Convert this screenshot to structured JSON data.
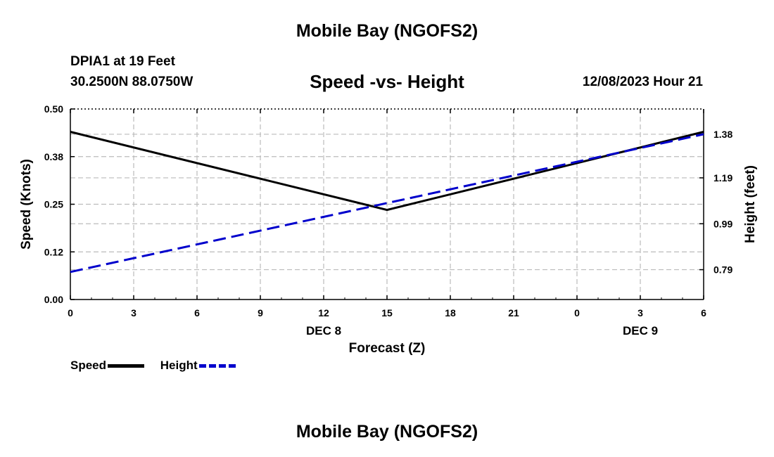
{
  "header": {
    "title": "Mobile Bay (NGOFS2)",
    "station": "DPIA1 at 19 Feet",
    "coordinates": "30.2500N  88.0750W",
    "chart_title": "Speed -vs- Height",
    "run_time": "12/08/2023 Hour 21"
  },
  "footer": {
    "title": "Mobile Bay (NGOFS2)"
  },
  "legend": {
    "speed_label": "Speed",
    "height_label": "Height"
  },
  "colors": {
    "speed": "#000000",
    "height": "#0000cc",
    "grid": "#bbbbbb"
  },
  "chart_data": {
    "type": "line",
    "title": "Speed -vs- Height",
    "xlabel": "Forecast (Z)",
    "ylabel": "Speed (Knots)",
    "y2label": "Height (feet)",
    "x_ticks": [
      "0",
      "3",
      "6",
      "9",
      "12",
      "15",
      "18",
      "21",
      "0",
      "3",
      "6"
    ],
    "x_tick_hours": [
      0,
      3,
      6,
      9,
      12,
      15,
      18,
      21,
      24,
      27,
      30
    ],
    "x_range": [
      0,
      30
    ],
    "date_labels": [
      {
        "label": "DEC 8",
        "hour": 12
      },
      {
        "label": "DEC 9",
        "hour": 27
      }
    ],
    "ylim": [
      0,
      0.5
    ],
    "y_ticks": [
      "0.00",
      "0.12",
      "0.25",
      "0.38",
      "0.50"
    ],
    "y_tick_values": [
      0,
      0.125,
      0.25,
      0.375,
      0.5
    ],
    "y2lim": [
      0.66,
      1.49
    ],
    "y2_ticks": [
      "0.79",
      "0.99",
      "1.19",
      "1.38"
    ],
    "y2_tick_values": [
      0.79,
      0.99,
      1.19,
      1.38
    ],
    "grid": true,
    "legend_position": "bottom-left",
    "series": [
      {
        "name": "Speed",
        "axis": "left",
        "style": "solid",
        "x": [
          0,
          15,
          30
        ],
        "values": [
          0.44,
          0.235,
          0.44
        ]
      },
      {
        "name": "Height",
        "axis": "right",
        "style": "dashed",
        "x": [
          0,
          30
        ],
        "values": [
          0.78,
          1.38
        ]
      }
    ]
  }
}
